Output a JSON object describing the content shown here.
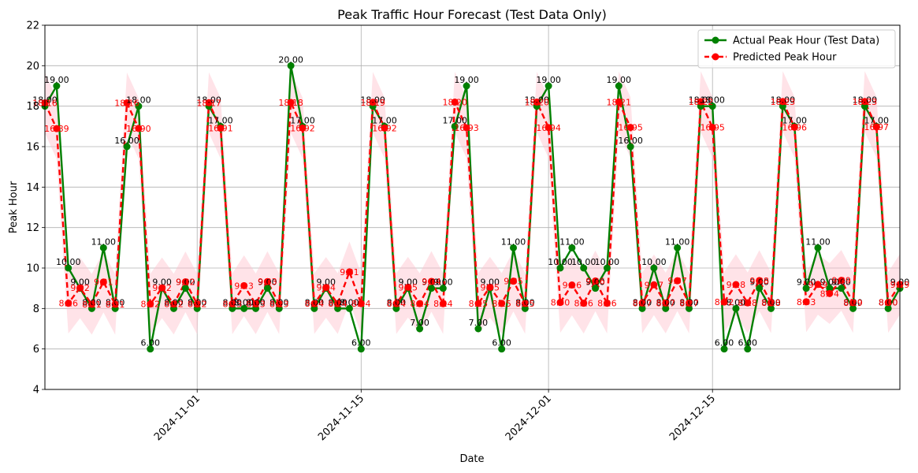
{
  "chart_data": {
    "type": "line",
    "title": "Peak Traffic Hour Forecast (Test Data Only)",
    "xlabel": "Date",
    "ylabel": "Peak Hour",
    "ylim": [
      4,
      22
    ],
    "yticks": [
      4,
      6,
      8,
      10,
      12,
      14,
      16,
      18,
      20,
      22
    ],
    "xlim": [
      "2024-10-19",
      "2024-12-31"
    ],
    "xticks": [
      "2024-11-01",
      "2024-11-15",
      "2024-12-01",
      "2024-12-15"
    ],
    "grid": true,
    "legend_position": "top-right",
    "confidence_band": 1.5,
    "colors": {
      "actual": "#008000",
      "predicted": "#ff0000",
      "band": "#ffc0cb"
    },
    "series": [
      {
        "name": "Actual Peak Hour (Test Data)",
        "style": "solid",
        "points": [
          [
            "2024-10-19",
            18
          ],
          [
            "2024-10-20",
            19
          ],
          [
            "2024-10-21",
            10
          ],
          [
            "2024-10-22",
            9
          ],
          [
            "2024-10-23",
            8
          ],
          [
            "2024-10-24",
            11
          ],
          [
            "2024-10-25",
            8
          ],
          [
            "2024-10-26",
            16
          ],
          [
            "2024-10-27",
            18
          ],
          [
            "2024-10-28",
            6
          ],
          [
            "2024-10-29",
            9
          ],
          [
            "2024-10-30",
            8
          ],
          [
            "2024-10-31",
            9
          ],
          [
            "2024-11-01",
            8
          ],
          [
            "2024-11-02",
            18
          ],
          [
            "2024-11-03",
            17
          ],
          [
            "2024-11-04",
            8
          ],
          [
            "2024-11-05",
            8
          ],
          [
            "2024-11-06",
            8
          ],
          [
            "2024-11-07",
            9
          ],
          [
            "2024-11-08",
            8
          ],
          [
            "2024-11-09",
            20
          ],
          [
            "2024-11-10",
            17
          ],
          [
            "2024-11-11",
            8
          ],
          [
            "2024-11-12",
            9
          ],
          [
            "2024-11-13",
            8
          ],
          [
            "2024-11-14",
            8
          ],
          [
            "2024-11-15",
            6
          ],
          [
            "2024-11-16",
            18
          ],
          [
            "2024-11-17",
            17
          ],
          [
            "2024-11-18",
            8
          ],
          [
            "2024-11-19",
            9
          ],
          [
            "2024-11-20",
            7
          ],
          [
            "2024-11-21",
            9
          ],
          [
            "2024-11-22",
            9
          ],
          [
            "2024-11-23",
            17
          ],
          [
            "2024-11-24",
            19
          ],
          [
            "2024-11-25",
            7
          ],
          [
            "2024-11-26",
            9
          ],
          [
            "2024-11-27",
            6
          ],
          [
            "2024-11-28",
            11
          ],
          [
            "2024-11-29",
            8
          ],
          [
            "2024-11-30",
            18
          ],
          [
            "2024-12-01",
            19
          ],
          [
            "2024-12-02",
            10
          ],
          [
            "2024-12-03",
            11
          ],
          [
            "2024-12-04",
            10
          ],
          [
            "2024-12-05",
            9
          ],
          [
            "2024-12-06",
            10
          ],
          [
            "2024-12-07",
            19
          ],
          [
            "2024-12-08",
            16
          ],
          [
            "2024-12-09",
            8
          ],
          [
            "2024-12-10",
            10
          ],
          [
            "2024-12-11",
            8
          ],
          [
            "2024-12-12",
            11
          ],
          [
            "2024-12-13",
            8
          ],
          [
            "2024-12-14",
            18
          ],
          [
            "2024-12-15",
            18
          ],
          [
            "2024-12-16",
            6
          ],
          [
            "2024-12-17",
            8
          ],
          [
            "2024-12-18",
            6
          ],
          [
            "2024-12-19",
            9
          ],
          [
            "2024-12-20",
            8
          ],
          [
            "2024-12-21",
            18
          ],
          [
            "2024-12-22",
            17
          ],
          [
            "2024-12-23",
            9
          ],
          [
            "2024-12-24",
            11
          ],
          [
            "2024-12-25",
            9
          ],
          [
            "2024-12-26",
            9
          ],
          [
            "2024-12-27",
            8
          ],
          [
            "2024-12-28",
            18
          ],
          [
            "2024-12-29",
            17
          ],
          [
            "2024-12-30",
            8
          ],
          [
            "2024-12-31",
            9
          ]
        ],
        "labels": [
          "18.00",
          "19.00",
          "10.00",
          "9.00",
          "8.00",
          "11.00",
          "8.00",
          "16.00",
          "18.00",
          "6.00",
          "9.00",
          "8.00",
          "9.00",
          "8.00",
          "18.00",
          "17.00",
          "8.00",
          "8.00",
          "8.00",
          "9.00",
          "8.00",
          "20.00",
          "17.00",
          "8.00",
          "9.00",
          "8.00",
          "8.00",
          "6.00",
          "18.00",
          "17.00",
          "8.00",
          "9.00",
          "7.00",
          "9.00",
          "9.00",
          "17.00",
          "19.00",
          "7.00",
          "9.00",
          "6.00",
          "11.00",
          "8.00",
          "18.00",
          "19.00",
          "10.00",
          "11.00",
          "10.00",
          "9.00",
          "10.00",
          "19.00",
          "16.00",
          "8.00",
          "10.00",
          "8.00",
          "11.00",
          "8.00",
          "18.00",
          "18.00",
          "6.00",
          "8.00",
          "6.00",
          "9.00",
          "8.00",
          "18.00",
          "17.00",
          "9.00",
          "11.00",
          "9.00",
          "9.00",
          "8.00",
          "18.00",
          "17.00",
          "8.00",
          "9.00"
        ]
      },
      {
        "name": "Predicted Peak Hour",
        "style": "dashed",
        "points": [
          [
            "2024-10-19",
            18.16
          ],
          [
            "2024-10-20",
            16.89
          ],
          [
            "2024-10-21",
            8.26
          ],
          [
            "2024-10-22",
            9.02
          ],
          [
            "2024-10-23",
            8.21
          ],
          [
            "2024-10-24",
            9.31
          ],
          [
            "2024-10-25",
            8.21
          ],
          [
            "2024-10-26",
            18.16
          ],
          [
            "2024-10-27",
            16.9
          ],
          [
            "2024-10-28",
            8.22
          ],
          [
            "2024-10-29",
            9.02
          ],
          [
            "2024-10-30",
            8.22
          ],
          [
            "2024-10-31",
            9.32
          ],
          [
            "2024-11-01",
            8.22
          ],
          [
            "2024-11-02",
            18.17
          ],
          [
            "2024-11-03",
            16.91
          ],
          [
            "2024-11-04",
            8.23
          ],
          [
            "2024-11-05",
            9.13
          ],
          [
            "2024-11-06",
            8.23
          ],
          [
            "2024-11-07",
            9.33
          ],
          [
            "2024-11-08",
            8.23
          ],
          [
            "2024-11-09",
            18.18
          ],
          [
            "2024-11-10",
            16.92
          ],
          [
            "2024-11-11",
            8.24
          ],
          [
            "2024-11-12",
            9.04
          ],
          [
            "2024-11-13",
            8.24
          ],
          [
            "2024-11-14",
            9.81
          ],
          [
            "2024-11-15",
            8.24
          ],
          [
            "2024-11-16",
            18.19
          ],
          [
            "2024-11-17",
            16.92
          ],
          [
            "2024-11-18",
            8.24
          ],
          [
            "2024-11-19",
            9.05
          ],
          [
            "2024-11-20",
            8.24
          ],
          [
            "2024-11-21",
            9.34
          ],
          [
            "2024-11-22",
            8.24
          ],
          [
            "2024-11-23",
            18.2
          ],
          [
            "2024-11-24",
            16.93
          ],
          [
            "2024-11-25",
            8.25
          ],
          [
            "2024-11-26",
            9.05
          ],
          [
            "2024-11-27",
            8.25
          ],
          [
            "2024-11-28",
            9.35
          ],
          [
            "2024-11-29",
            8.25
          ],
          [
            "2024-11-30",
            18.2
          ],
          [
            "2024-12-01",
            16.94
          ],
          [
            "2024-12-02",
            8.3
          ],
          [
            "2024-12-03",
            9.16
          ],
          [
            "2024-12-04",
            8.26
          ],
          [
            "2024-12-05",
            9.36
          ],
          [
            "2024-12-06",
            8.26
          ],
          [
            "2024-12-07",
            18.21
          ],
          [
            "2024-12-08",
            16.95
          ],
          [
            "2024-12-09",
            8.27
          ],
          [
            "2024-12-10",
            9.17
          ],
          [
            "2024-12-11",
            8.27
          ],
          [
            "2024-12-12",
            9.37
          ],
          [
            "2024-12-13",
            8.27
          ],
          [
            "2024-12-14",
            18.22
          ],
          [
            "2024-12-15",
            16.95
          ],
          [
            "2024-12-16",
            8.32
          ],
          [
            "2024-12-17",
            9.18
          ],
          [
            "2024-12-18",
            8.28
          ],
          [
            "2024-12-19",
            9.38
          ],
          [
            "2024-12-20",
            8.28
          ],
          [
            "2024-12-21",
            18.23
          ],
          [
            "2024-12-22",
            16.96
          ],
          [
            "2024-12-23",
            8.33
          ],
          [
            "2024-12-24",
            9.19
          ],
          [
            "2024-12-25",
            8.74
          ],
          [
            "2024-12-26",
            9.39
          ],
          [
            "2024-12-27",
            8.29
          ],
          [
            "2024-12-28",
            18.23
          ],
          [
            "2024-12-29",
            16.97
          ],
          [
            "2024-12-30",
            8.3
          ],
          [
            "2024-12-31",
            9.19
          ]
        ],
        "labels": [
          "18.16",
          "16.89",
          "8.26",
          "9.02",
          "8.21",
          "9.31",
          "8.21",
          "18.16",
          "16.90",
          "8.22",
          "9.02",
          "8.22",
          "9.32",
          "8.22",
          "18.17",
          "16.91",
          "8.23",
          "9.13",
          "8.23",
          "9.33",
          "8.23",
          "18.18",
          "16.92",
          "8.24",
          "9.04",
          "8.24",
          "9.81",
          "8.24",
          "18.19",
          "16.92",
          "8.24",
          "9.05",
          "8.24",
          "9.34",
          "8.24",
          "18.20",
          "16.93",
          "8.25",
          "9.05",
          "8.25",
          "9.35",
          "8.25",
          "18.20",
          "16.94",
          "8.30",
          "9.16",
          "8.26",
          "9.36",
          "8.26",
          "18.21",
          "16.95",
          "8.27",
          "9.17",
          "8.27",
          "9.37",
          "8.27",
          "18.22",
          "16.95",
          "8.32",
          "9.18",
          "8.28",
          "9.38",
          "8.28",
          "18.23",
          "16.96",
          "8.33",
          "9.19",
          "8.74",
          "9.39",
          "8.29",
          "18.23",
          "16.97",
          "8.30",
          "9.19"
        ]
      }
    ]
  }
}
